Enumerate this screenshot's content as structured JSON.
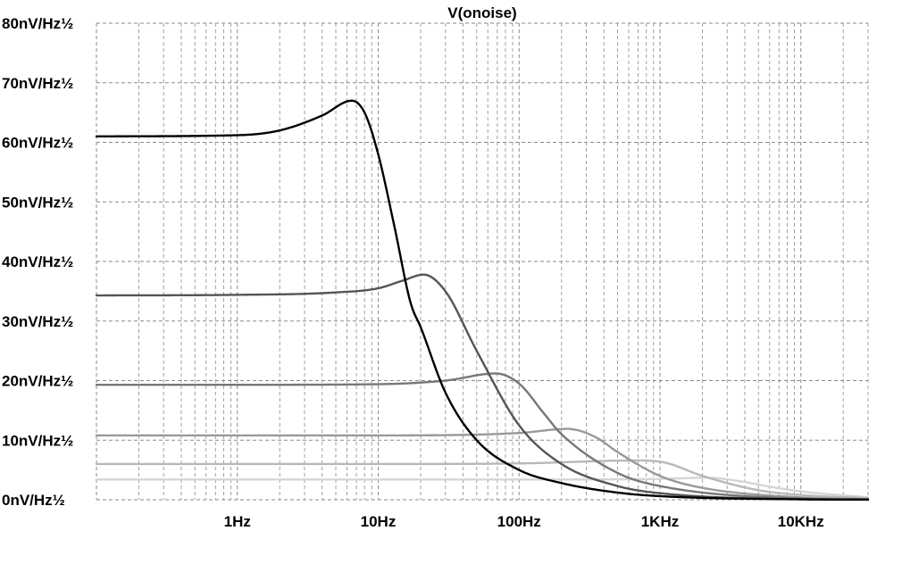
{
  "chart_data": {
    "type": "line",
    "title": "V(onoise)",
    "xlabel": "",
    "ylabel": "",
    "x_scale": "log",
    "xlim": [
      0.1,
      30000
    ],
    "ylim": [
      0,
      80
    ],
    "grid": true,
    "y_ticks": [
      0,
      10,
      20,
      30,
      40,
      50,
      60,
      70,
      80
    ],
    "y_tick_labels": [
      "0nV/Hz½",
      "10nV/Hz½",
      "20nV/Hz½",
      "30nV/Hz½",
      "40nV/Hz½",
      "50nV/Hz½",
      "60nV/Hz½",
      "70nV/Hz½",
      "80nV/Hz½"
    ],
    "x_ticks": [
      1,
      10,
      100,
      1000,
      10000
    ],
    "x_tick_labels": [
      "1Hz",
      "10Hz",
      "100Hz",
      "1KHz",
      "10KHz"
    ],
    "series": [
      {
        "color": "#000000",
        "peak_freq": 6.5,
        "low_freq_level": 61,
        "peak_value": 67,
        "points": [
          [
            0.1,
            61
          ],
          [
            1,
            61.2
          ],
          [
            2,
            62
          ],
          [
            4,
            64.5
          ],
          [
            6.5,
            67
          ],
          [
            8,
            65
          ],
          [
            10,
            58
          ],
          [
            13,
            46
          ],
          [
            17,
            33
          ],
          [
            20,
            29
          ],
          [
            30,
            18
          ],
          [
            50,
            10
          ],
          [
            100,
            5
          ],
          [
            200,
            2.8
          ],
          [
            500,
            1.2
          ],
          [
            1000,
            0.6
          ],
          [
            10000,
            0.07
          ],
          [
            30000,
            0.02
          ]
        ]
      },
      {
        "color": "#555555",
        "peak_freq": 21,
        "low_freq_level": 34.3,
        "peak_value": 37.8,
        "points": [
          [
            0.1,
            34.3
          ],
          [
            1,
            34.4
          ],
          [
            5,
            34.8
          ],
          [
            10,
            35.5
          ],
          [
            15,
            36.8
          ],
          [
            21,
            37.8
          ],
          [
            30,
            35
          ],
          [
            50,
            25
          ],
          [
            100,
            12.5
          ],
          [
            200,
            6
          ],
          [
            500,
            2.3
          ],
          [
            1000,
            1.1
          ],
          [
            10000,
            0.1
          ],
          [
            30000,
            0.03
          ]
        ]
      },
      {
        "color": "#777777",
        "peak_freq": 68,
        "low_freq_level": 19.3,
        "peak_value": 21.2,
        "points": [
          [
            0.1,
            19.3
          ],
          [
            1,
            19.3
          ],
          [
            10,
            19.4
          ],
          [
            30,
            20
          ],
          [
            68,
            21.2
          ],
          [
            100,
            19.5
          ],
          [
            150,
            14.5
          ],
          [
            200,
            11
          ],
          [
            500,
            4.5
          ],
          [
            1000,
            2.3
          ],
          [
            10000,
            0.2
          ],
          [
            30000,
            0.06
          ]
        ]
      },
      {
        "color": "#999999",
        "peak_freq": 220,
        "low_freq_level": 10.8,
        "peak_value": 11.9,
        "points": [
          [
            0.1,
            10.8
          ],
          [
            1,
            10.8
          ],
          [
            10,
            10.8
          ],
          [
            100,
            11.2
          ],
          [
            220,
            11.9
          ],
          [
            350,
            10.5
          ],
          [
            500,
            8
          ],
          [
            1000,
            4
          ],
          [
            2000,
            2
          ],
          [
            10000,
            0.4
          ],
          [
            30000,
            0.12
          ]
        ]
      },
      {
        "color": "#b8b8b8",
        "peak_freq": 700,
        "low_freq_level": 6.0,
        "peak_value": 6.6,
        "points": [
          [
            0.1,
            6
          ],
          [
            1,
            6
          ],
          [
            10,
            6
          ],
          [
            100,
            6.1
          ],
          [
            700,
            6.6
          ],
          [
            1100,
            6.2
          ],
          [
            2000,
            4
          ],
          [
            5000,
            1.6
          ],
          [
            10000,
            0.8
          ],
          [
            30000,
            0.25
          ]
        ]
      },
      {
        "color": "#d5d5d5",
        "peak_freq": 2200,
        "low_freq_level": 3.4,
        "peak_value": 3.7,
        "points": [
          [
            0.1,
            3.4
          ],
          [
            1,
            3.4
          ],
          [
            100,
            3.4
          ],
          [
            1000,
            3.5
          ],
          [
            2200,
            3.7
          ],
          [
            3500,
            3.2
          ],
          [
            6000,
            2.2
          ],
          [
            10000,
            1.4
          ],
          [
            30000,
            0.4
          ]
        ]
      }
    ]
  }
}
